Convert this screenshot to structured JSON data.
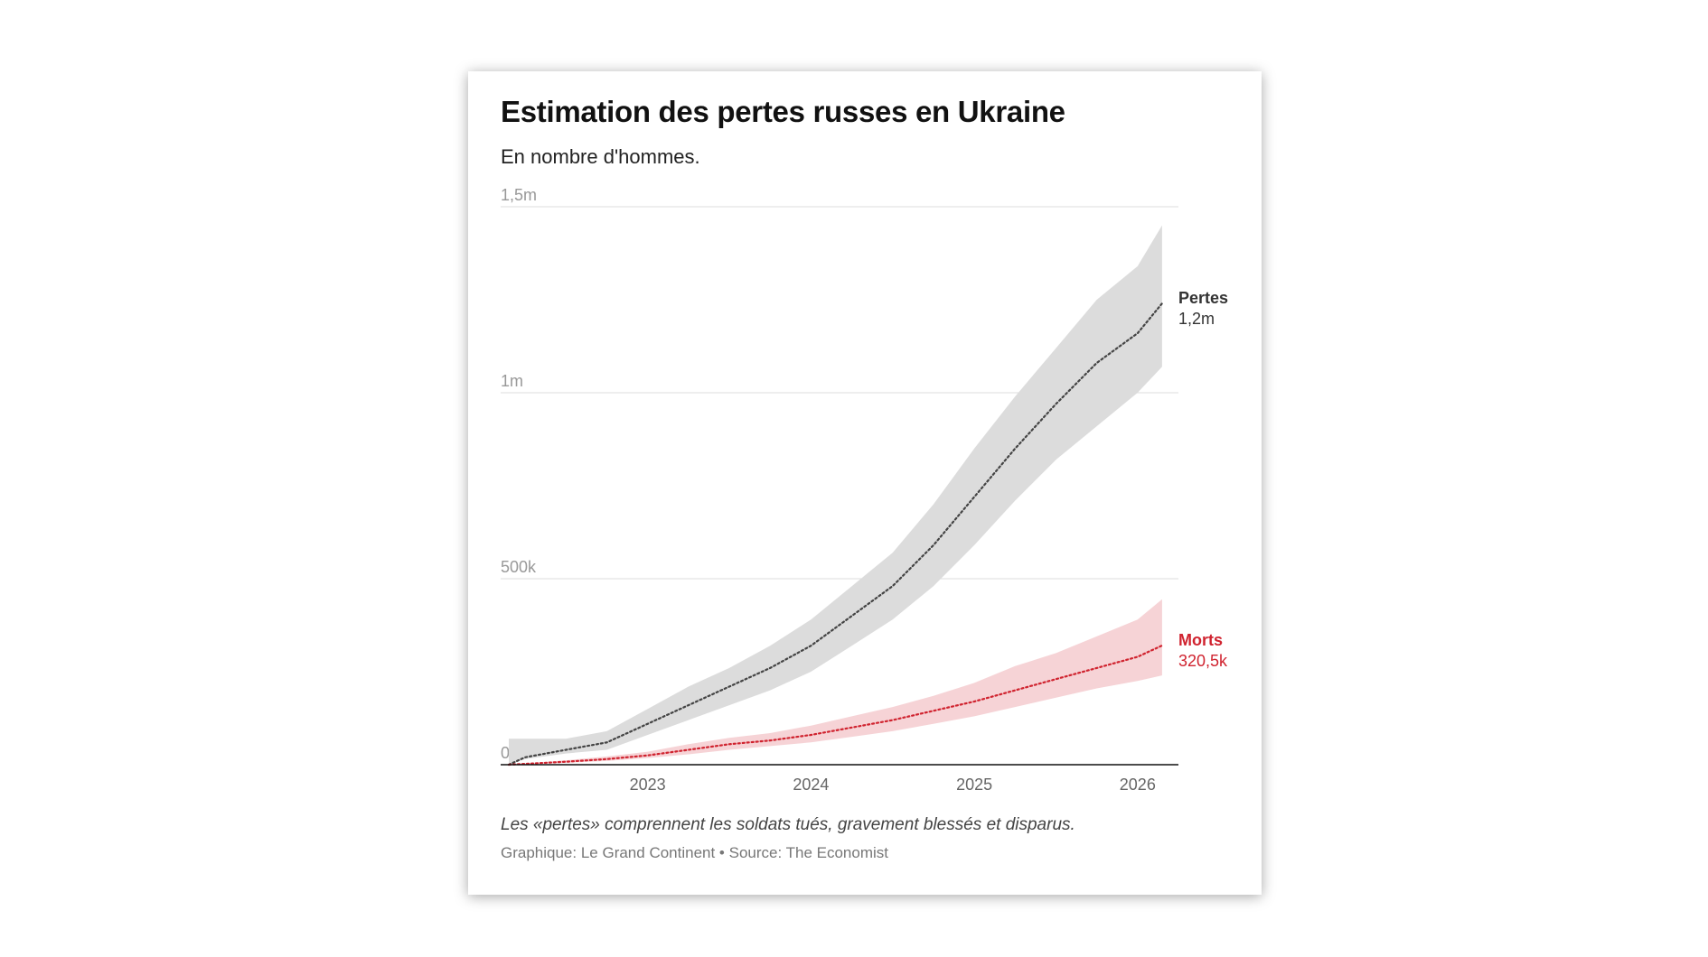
{
  "title": "Estimation des pertes russes en Ukraine",
  "subtitle": "En nombre d'hommes.",
  "note": "Les «pertes» comprennent les soldats tués, gravement blessés et disparus.",
  "source": "Graphique: Le Grand Continent • Source: The Economist",
  "colors": {
    "pertes_line": "#444444",
    "pertes_band": "#dcdcdc",
    "morts_line": "#d0232f",
    "morts_band": "#f6d3d6",
    "grid": "#dddddd",
    "axis": "#111111"
  },
  "chart_data": {
    "type": "area",
    "title": "Estimation des pertes russes en Ukraine",
    "subtitle": "En nombre d'hommes.",
    "xlabel": "",
    "ylabel": "",
    "xlim": [
      2022.1,
      2026.25
    ],
    "ylim": [
      0,
      1500000
    ],
    "grid": true,
    "y_ticks": [
      {
        "value": 0,
        "label": "0"
      },
      {
        "value": 500000,
        "label": "500k"
      },
      {
        "value": 1000000,
        "label": "1m"
      },
      {
        "value": 1500000,
        "label": "1,5m"
      }
    ],
    "x_ticks": [
      {
        "value": 2023,
        "label": "2023"
      },
      {
        "value": 2024,
        "label": "2024"
      },
      {
        "value": 2025,
        "label": "2025"
      },
      {
        "value": 2026,
        "label": "2026"
      }
    ],
    "series": [
      {
        "name": "Pertes",
        "end_label": "1,2m",
        "x": [
          2022.15,
          2022.25,
          2022.5,
          2022.75,
          2023.0,
          2023.25,
          2023.5,
          2023.75,
          2024.0,
          2024.25,
          2024.5,
          2024.75,
          2025.0,
          2025.25,
          2025.5,
          2025.75,
          2026.0,
          2026.15
        ],
        "values": [
          0,
          20000,
          40000,
          60000,
          110000,
          160000,
          210000,
          260000,
          320000,
          400000,
          480000,
          590000,
          720000,
          850000,
          970000,
          1080000,
          1160000,
          1240000
        ],
        "low": [
          0,
          15000,
          30000,
          40000,
          80000,
          120000,
          160000,
          200000,
          250000,
          320000,
          390000,
          480000,
          590000,
          710000,
          820000,
          910000,
          1000000,
          1070000
        ],
        "high": [
          70000,
          70000,
          70000,
          90000,
          150000,
          210000,
          260000,
          320000,
          390000,
          480000,
          570000,
          700000,
          850000,
          990000,
          1120000,
          1250000,
          1340000,
          1450000
        ]
      },
      {
        "name": "Morts",
        "end_label": "320,5k",
        "x": [
          2022.15,
          2022.5,
          2022.75,
          2023.0,
          2023.25,
          2023.5,
          2023.75,
          2024.0,
          2024.25,
          2024.5,
          2024.75,
          2025.0,
          2025.25,
          2025.5,
          2025.75,
          2026.0,
          2026.15
        ],
        "values": [
          0,
          8000,
          15000,
          25000,
          40000,
          55000,
          65000,
          80000,
          100000,
          120000,
          145000,
          170000,
          200000,
          230000,
          260000,
          290000,
          320500
        ],
        "low": [
          0,
          5000,
          10000,
          18000,
          28000,
          40000,
          50000,
          60000,
          75000,
          90000,
          110000,
          130000,
          155000,
          180000,
          205000,
          225000,
          240000
        ],
        "high": [
          0,
          12000,
          22000,
          35000,
          55000,
          72000,
          85000,
          105000,
          130000,
          155000,
          185000,
          220000,
          265000,
          300000,
          345000,
          390000,
          445000
        ]
      }
    ]
  }
}
